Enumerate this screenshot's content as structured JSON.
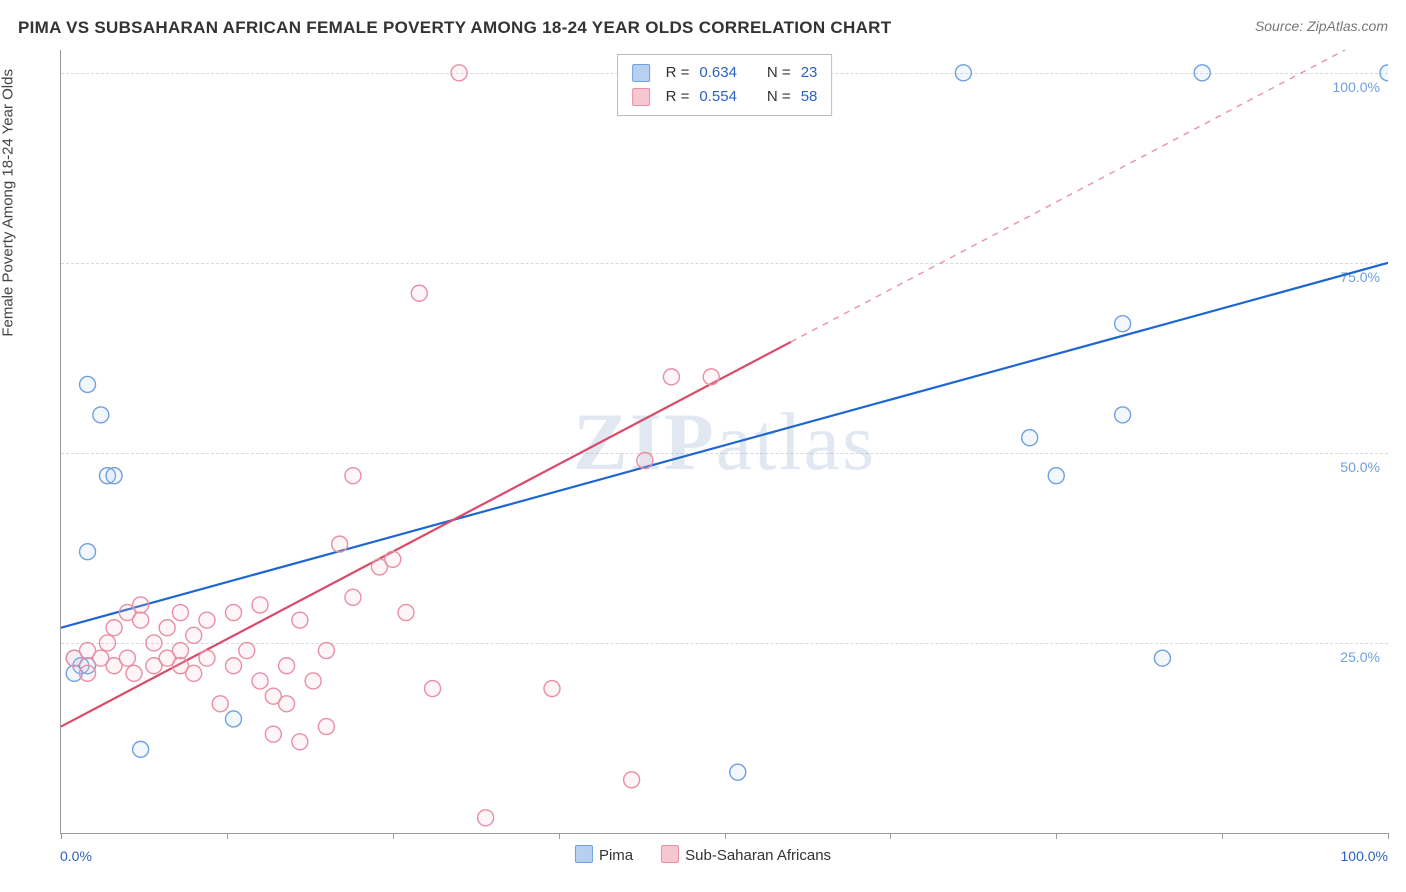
{
  "header": {
    "title": "PIMA VS SUBSAHARAN AFRICAN FEMALE POVERTY AMONG 18-24 YEAR OLDS CORRELATION CHART",
    "source_prefix": "Source: ",
    "source_name": "ZipAtlas.com"
  },
  "watermark": {
    "bold": "ZIP",
    "light": "atlas"
  },
  "chart": {
    "type": "scatter",
    "y_label": "Female Poverty Among 18-24 Year Olds",
    "xlim": [
      0,
      100
    ],
    "ylim": [
      0,
      103
    ],
    "x_ticks": [
      0,
      12.5,
      25,
      37.5,
      50,
      62.5,
      75,
      87.5,
      100
    ],
    "x_range_labels": {
      "min": "0.0%",
      "max": "100.0%"
    },
    "y_ticks": [
      {
        "v": 25,
        "label": "25.0%"
      },
      {
        "v": 50,
        "label": "50.0%"
      },
      {
        "v": 75,
        "label": "75.0%"
      },
      {
        "v": 100,
        "label": "100.0%"
      }
    ],
    "grid_color": "#d9d9d9",
    "axis_color": "#999999",
    "background_color": "#ffffff",
    "marker_radius": 8,
    "marker_stroke_width": 1.4,
    "marker_fill_opacity": 0.18,
    "trend_line_width": 2.2,
    "series": [
      {
        "name": "Pima",
        "color_stroke": "#6fa0e0",
        "color_fill": "#b8d0ef",
        "trend_color": "#1e66d0",
        "R": 0.634,
        "N": 23,
        "trend": {
          "y_at_x0": 27,
          "y_at_x100": 75,
          "solid_until_x": 100
        },
        "points": [
          [
            2,
            59
          ],
          [
            3,
            55
          ],
          [
            3.5,
            47
          ],
          [
            4,
            47
          ],
          [
            2,
            37
          ],
          [
            1,
            23
          ],
          [
            1.5,
            22
          ],
          [
            1,
            21
          ],
          [
            2,
            22
          ],
          [
            6,
            11
          ],
          [
            13,
            15
          ],
          [
            51,
            8
          ],
          [
            68,
            100
          ],
          [
            73,
            52
          ],
          [
            75,
            47
          ],
          [
            80,
            55
          ],
          [
            80,
            67
          ],
          [
            83,
            23
          ],
          [
            86,
            100
          ],
          [
            100,
            100
          ]
        ]
      },
      {
        "name": "Sub-Saharan Africans",
        "color_stroke": "#e98fa4",
        "color_fill": "#f6c6d1",
        "trend_color": "#d94a6a",
        "R": 0.554,
        "N": 58,
        "trend": {
          "y_at_x0": 14,
          "y_at_x100": 106,
          "solid_until_x": 55
        },
        "points": [
          [
            1,
            23
          ],
          [
            2,
            24
          ],
          [
            2,
            21
          ],
          [
            3,
            23
          ],
          [
            3.5,
            25
          ],
          [
            4,
            22
          ],
          [
            4,
            27
          ],
          [
            5,
            29
          ],
          [
            5,
            23
          ],
          [
            5.5,
            21
          ],
          [
            6,
            28
          ],
          [
            6,
            30
          ],
          [
            7,
            25
          ],
          [
            7,
            22
          ],
          [
            8,
            27
          ],
          [
            8,
            23
          ],
          [
            9,
            29
          ],
          [
            9,
            24
          ],
          [
            9,
            22
          ],
          [
            10,
            26
          ],
          [
            10,
            21
          ],
          [
            11,
            28
          ],
          [
            11,
            23
          ],
          [
            12,
            17
          ],
          [
            13,
            29
          ],
          [
            13,
            22
          ],
          [
            14,
            24
          ],
          [
            15,
            20
          ],
          [
            15,
            30
          ],
          [
            16,
            18
          ],
          [
            16,
            13
          ],
          [
            17,
            22
          ],
          [
            17,
            17
          ],
          [
            18,
            28
          ],
          [
            18,
            12
          ],
          [
            19,
            20
          ],
          [
            20,
            24
          ],
          [
            20,
            14
          ],
          [
            21,
            38
          ],
          [
            22,
            31
          ],
          [
            22,
            47
          ],
          [
            24,
            35
          ],
          [
            25,
            36
          ],
          [
            26,
            29
          ],
          [
            27,
            71
          ],
          [
            28,
            19
          ],
          [
            30,
            100
          ],
          [
            32,
            2
          ],
          [
            37,
            19
          ],
          [
            43,
            7
          ],
          [
            44,
            49
          ],
          [
            46,
            60
          ],
          [
            49,
            60
          ],
          [
            52,
            100
          ]
        ]
      }
    ],
    "stats_box": {
      "rows": [
        {
          "swatch": 0,
          "R_label": "R =",
          "R": "0.634",
          "N_label": "N =",
          "N": "23"
        },
        {
          "swatch": 1,
          "R_label": "R =",
          "R": "0.554",
          "N_label": "N =",
          "N": "58"
        }
      ]
    },
    "legend": [
      {
        "swatch": 0,
        "label": "Pima"
      },
      {
        "swatch": 1,
        "label": "Sub-Saharan Africans"
      }
    ]
  }
}
